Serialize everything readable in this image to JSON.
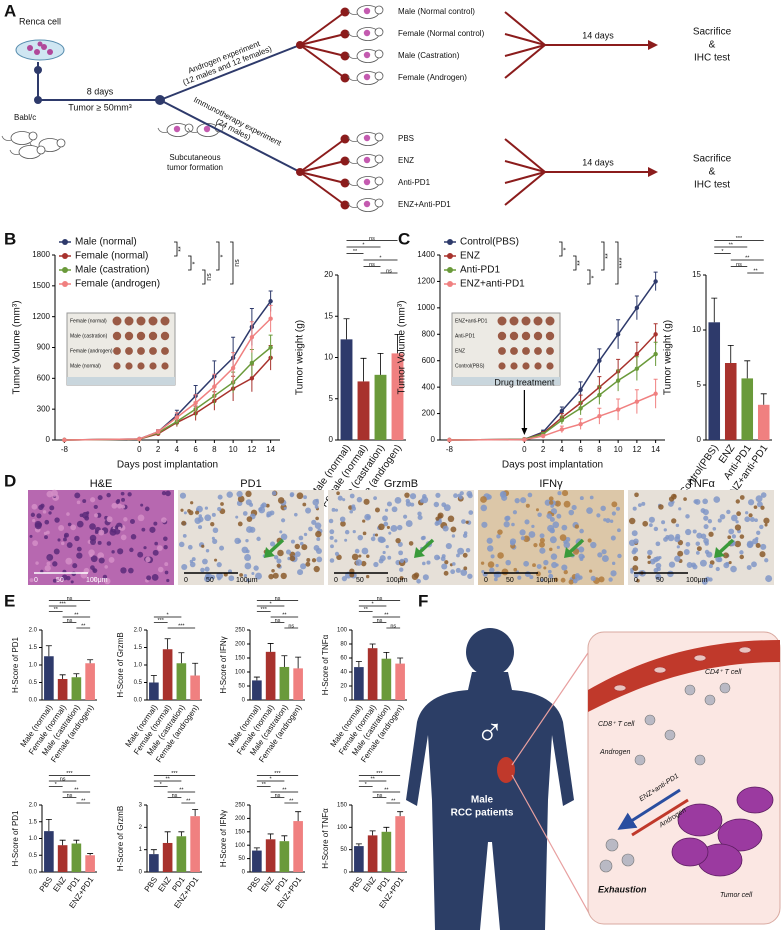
{
  "panel_labels": [
    "A",
    "B",
    "C",
    "D",
    "E",
    "F"
  ],
  "schematic": {
    "renca": "Renca cell",
    "mouse": "Babl/c",
    "days": "8 days",
    "tumor": "Tumor ≥ 50mm³",
    "formation": [
      "Subcutaneous",
      "tumor formation"
    ],
    "branches": [
      {
        "title": [
          "Androgen experiment",
          "(12 males and 12 females)"
        ],
        "groups": [
          "Male (Normal control)",
          "Female (Normal control)",
          "Male (Castration)",
          "Female (Androgen)"
        ],
        "days": "14 days",
        "end": [
          "Sacrifice",
          "&",
          "IHC test"
        ]
      },
      {
        "title": [
          "Immunotherapy experiment",
          "(24 males)"
        ],
        "groups": [
          "PBS",
          "ENZ",
          "Anti-PD1",
          "ENZ+Anti-PD1"
        ],
        "days": "14 days",
        "end": [
          "Sacrifice",
          "&",
          "IHC test"
        ]
      }
    ]
  },
  "chart_data": [
    {
      "type": "line",
      "ylabel": "Tumor Volume (mm³)",
      "xlabel": "Days post implantation",
      "x": [
        -8,
        0,
        2,
        4,
        6,
        8,
        10,
        12,
        14
      ],
      "xlim": [
        -9,
        15
      ],
      "xticks": [
        -8,
        0,
        2,
        4,
        6,
        8,
        10,
        12,
        14
      ],
      "ylim": [
        0,
        1800
      ],
      "yticks": [
        0,
        300,
        600,
        900,
        1200,
        1500,
        1800
      ],
      "series": [
        {
          "name": "Male (normal)",
          "color": "#2e3a6b",
          "values": [
            0,
            10,
            80,
            240,
            430,
            620,
            800,
            1100,
            1350
          ],
          "errors": [
            0,
            5,
            20,
            50,
            100,
            150,
            200,
            180,
            100
          ]
        },
        {
          "name": "Female (normal)",
          "color": "#a8322d",
          "values": [
            0,
            8,
            60,
            170,
            260,
            380,
            500,
            600,
            800
          ],
          "errors": [
            0,
            4,
            15,
            40,
            70,
            90,
            120,
            130,
            120
          ]
        },
        {
          "name": "Male (castration)",
          "color": "#6a9a3a",
          "values": [
            0,
            8,
            70,
            180,
            300,
            430,
            560,
            750,
            900
          ],
          "errors": [
            0,
            4,
            15,
            40,
            70,
            90,
            100,
            130,
            120
          ]
        },
        {
          "name": "Female (androgen)",
          "color": "#f08080",
          "values": [
            0,
            10,
            80,
            220,
            360,
            520,
            700,
            1000,
            1180
          ],
          "errors": [
            0,
            5,
            20,
            45,
            80,
            120,
            150,
            150,
            130
          ]
        }
      ],
      "comparisons": [
        {
          "a": 0,
          "b": 1,
          "label": "**"
        },
        {
          "a": 1,
          "b": 2,
          "label": "*"
        },
        {
          "a": 2,
          "b": 3,
          "label": "ns"
        },
        {
          "a": 0,
          "b": 2,
          "label": "*"
        },
        {
          "a": 0,
          "b": 3,
          "label": "ns"
        }
      ],
      "inset_labels": [
        "Female (normal)",
        "Male (castration)",
        "Female (androgen)",
        "Male (normal)"
      ]
    },
    {
      "type": "bar",
      "ylabel": "Tumor weight (g)",
      "categories": [
        "Male (normal)",
        "Female (normal)",
        "Male (castration)",
        "Female (androgen)"
      ],
      "colors": [
        "#2e3a6b",
        "#a8322d",
        "#6a9a3a",
        "#f08080"
      ],
      "values": [
        12.2,
        7.1,
        7.9,
        10.5
      ],
      "errors": [
        2.5,
        2.8,
        2.6,
        2.3
      ],
      "ylim": [
        0,
        20
      ],
      "yticks": [
        0,
        5,
        10,
        15,
        20
      ],
      "comparisons": [
        {
          "a": 2,
          "b": 3,
          "label": "ns"
        },
        {
          "a": 1,
          "b": 2,
          "label": "ns"
        },
        {
          "a": 1,
          "b": 3,
          "label": "*"
        },
        {
          "a": 0,
          "b": 1,
          "label": "**"
        },
        {
          "a": 0,
          "b": 2,
          "label": "*"
        },
        {
          "a": 0,
          "b": 3,
          "label": "ns"
        }
      ]
    },
    {
      "type": "line",
      "ylabel": "Tumor Volume (mm³)",
      "xlabel": "Days post implantation",
      "x": [
        -8,
        0,
        2,
        4,
        6,
        8,
        10,
        12,
        14
      ],
      "xlim": [
        -9,
        15
      ],
      "xticks": [
        -8,
        0,
        2,
        4,
        6,
        8,
        10,
        12,
        14
      ],
      "ylim": [
        0,
        1400
      ],
      "yticks": [
        0,
        200,
        400,
        600,
        800,
        1000,
        1200,
        1400
      ],
      "annotation": {
        "text": "Drug treatment",
        "x": 0
      },
      "series": [
        {
          "name": "Control(PBS)",
          "color": "#2e3a6b",
          "values": [
            0,
            5,
            60,
            220,
            380,
            600,
            800,
            1000,
            1200
          ],
          "errors": [
            0,
            3,
            15,
            30,
            60,
            90,
            110,
            90,
            70
          ]
        },
        {
          "name": "ENZ",
          "color": "#a8322d",
          "values": [
            0,
            5,
            50,
            170,
            280,
            400,
            520,
            650,
            800
          ],
          "errors": [
            0,
            3,
            12,
            30,
            60,
            80,
            90,
            90,
            80
          ]
        },
        {
          "name": "Anti-PD1",
          "color": "#6a9a3a",
          "values": [
            0,
            5,
            45,
            150,
            240,
            340,
            450,
            540,
            650
          ],
          "errors": [
            0,
            3,
            12,
            30,
            50,
            70,
            80,
            90,
            90
          ]
        },
        {
          "name": "ENZ+anti-PD1",
          "color": "#f08080",
          "values": [
            0,
            3,
            30,
            80,
            120,
            180,
            230,
            290,
            350
          ],
          "errors": [
            0,
            2,
            10,
            25,
            40,
            60,
            80,
            90,
            110
          ]
        }
      ],
      "comparisons": [
        {
          "a": 0,
          "b": 1,
          "label": "*"
        },
        {
          "a": 1,
          "b": 2,
          "label": "**"
        },
        {
          "a": 2,
          "b": 3,
          "label": "*"
        },
        {
          "a": 0,
          "b": 2,
          "label": "**"
        },
        {
          "a": 0,
          "b": 3,
          "label": "****"
        }
      ],
      "inset_labels": [
        "ENZ+anti-PD1",
        "Anti-PD1",
        "ENZ",
        "Control(PBS)"
      ]
    },
    {
      "type": "bar",
      "ylabel": "Tumor weight (g)",
      "categories": [
        "Control(PBS)",
        "ENZ",
        "Anti-PD1",
        "ENZ+anti-PD1"
      ],
      "colors": [
        "#2e3a6b",
        "#a8322d",
        "#6a9a3a",
        "#f08080"
      ],
      "values": [
        10.7,
        7.0,
        5.6,
        3.2
      ],
      "errors": [
        2.2,
        1.6,
        1.6,
        1.0
      ],
      "ylim": [
        0,
        15
      ],
      "yticks": [
        0,
        5,
        10,
        15
      ],
      "comparisons": [
        {
          "a": 2,
          "b": 3,
          "label": "**"
        },
        {
          "a": 1,
          "b": 2,
          "label": "ns"
        },
        {
          "a": 1,
          "b": 3,
          "label": "**"
        },
        {
          "a": 0,
          "b": 1,
          "label": "*"
        },
        {
          "a": 0,
          "b": 2,
          "label": "**"
        },
        {
          "a": 0,
          "b": 3,
          "label": "***"
        }
      ]
    },
    {
      "type": "bar",
      "ylabel": "H-Score of PD1",
      "categories": [
        "Male (normal)",
        "Female (normal)",
        "Male (castration)",
        "Female (androgen)"
      ],
      "colors": [
        "#2e3a6b",
        "#a8322d",
        "#6a9a3a",
        "#f08080"
      ],
      "values": [
        1.25,
        0.6,
        0.65,
        1.05
      ],
      "errors": [
        0.3,
        0.12,
        0.1,
        0.1
      ],
      "ylim": [
        0,
        2
      ],
      "yticks": [
        {
          "value": 0,
          "label": "0.0"
        },
        {
          "value": 0.5,
          "label": "0.5"
        },
        {
          "value": 1,
          "label": "1.0"
        },
        {
          "value": 1.5,
          "label": "1.5"
        },
        {
          "value": 2,
          "label": "2.0"
        }
      ],
      "comparisons": [
        {
          "a": 2,
          "b": 3,
          "label": "**"
        },
        {
          "a": 1,
          "b": 2,
          "label": "ns"
        },
        {
          "a": 1,
          "b": 3,
          "label": "**"
        },
        {
          "a": 0,
          "b": 1,
          "label": "**"
        },
        {
          "a": 0,
          "b": 2,
          "label": "***"
        },
        {
          "a": 0,
          "b": 3,
          "label": "ns"
        }
      ]
    },
    {
      "type": "bar",
      "ylabel": "H-Score of GrzmB",
      "categories": [
        "Male (normal)",
        "Female (normal)",
        "Male (castration)",
        "Female (androgen)"
      ],
      "colors": [
        "#2e3a6b",
        "#a8322d",
        "#6a9a3a",
        "#f08080"
      ],
      "values": [
        0.5,
        1.45,
        1.05,
        0.7
      ],
      "errors": [
        0.2,
        0.3,
        0.3,
        0.35
      ],
      "ylim": [
        0,
        2
      ],
      "yticks": [
        {
          "value": 0,
          "label": "0.0"
        },
        {
          "value": 0.5,
          "label": "0.5"
        },
        {
          "value": 1,
          "label": "1.0"
        },
        {
          "value": 1.5,
          "label": "1.5"
        },
        {
          "value": 2,
          "label": "2.0"
        }
      ],
      "comparisons": [
        {
          "a": 1,
          "b": 3,
          "label": "***"
        },
        {
          "a": 0,
          "b": 1,
          "label": "***"
        },
        {
          "a": 0,
          "b": 2,
          "label": "*"
        }
      ]
    },
    {
      "type": "bar",
      "ylabel": "H-Score of IFNγ",
      "categories": [
        "Male (normal)",
        "Female (normal)",
        "Male (castration)",
        "Female (androgen)"
      ],
      "colors": [
        "#2e3a6b",
        "#a8322d",
        "#6a9a3a",
        "#f08080"
      ],
      "values": [
        70,
        172,
        118,
        113
      ],
      "errors": [
        12,
        30,
        40,
        40
      ],
      "ylim": [
        0,
        250
      ],
      "yticks": [
        0,
        50,
        100,
        150,
        200,
        250
      ],
      "comparisons": [
        {
          "a": 2,
          "b": 3,
          "label": "ns"
        },
        {
          "a": 1,
          "b": 2,
          "label": "ns"
        },
        {
          "a": 1,
          "b": 3,
          "label": "**"
        },
        {
          "a": 0,
          "b": 1,
          "label": "***"
        },
        {
          "a": 0,
          "b": 2,
          "label": "*"
        },
        {
          "a": 0,
          "b": 3,
          "label": "ns"
        }
      ]
    },
    {
      "type": "bar",
      "ylabel": "H-Score of TNFα",
      "categories": [
        "Male (normal)",
        "Female (normal)",
        "Male (castration)",
        "Female (androgen)"
      ],
      "colors": [
        "#2e3a6b",
        "#a8322d",
        "#6a9a3a",
        "#f08080"
      ],
      "values": [
        47,
        74,
        59,
        52
      ],
      "errors": [
        8,
        6,
        9,
        8
      ],
      "ylim": [
        0,
        100
      ],
      "yticks": [
        0,
        20,
        40,
        60,
        80,
        100
      ],
      "comparisons": [
        {
          "a": 2,
          "b": 3,
          "label": "ns"
        },
        {
          "a": 1,
          "b": 2,
          "label": "ns"
        },
        {
          "a": 1,
          "b": 3,
          "label": "**"
        },
        {
          "a": 0,
          "b": 1,
          "label": "**"
        },
        {
          "a": 0,
          "b": 2,
          "label": "*"
        },
        {
          "a": 0,
          "b": 3,
          "label": "ns"
        }
      ]
    },
    {
      "type": "bar",
      "ylabel": "H-Score of PD1",
      "categories": [
        "PBS",
        "ENZ",
        "PD1",
        "ENZ+PD1"
      ],
      "colors": [
        "#2e3a6b",
        "#a8322d",
        "#6a9a3a",
        "#f08080"
      ],
      "values": [
        1.22,
        0.8,
        0.85,
        0.5
      ],
      "errors": [
        0.35,
        0.15,
        0.1,
        0.05
      ],
      "ylim": [
        0,
        2
      ],
      "yticks": [
        {
          "value": 0,
          "label": "0.0"
        },
        {
          "value": 0.5,
          "label": "0.5"
        },
        {
          "value": 1,
          "label": "1.0"
        },
        {
          "value": 1.5,
          "label": "1.5"
        },
        {
          "value": 2,
          "label": "2.0"
        }
      ],
      "comparisons": [
        {
          "a": 2,
          "b": 3,
          "label": "**"
        },
        {
          "a": 1,
          "b": 2,
          "label": "ns"
        },
        {
          "a": 1,
          "b": 3,
          "label": "**"
        },
        {
          "a": 0,
          "b": 1,
          "label": "*"
        },
        {
          "a": 0,
          "b": 2,
          "label": "ns"
        },
        {
          "a": 0,
          "b": 3,
          "label": "***"
        }
      ]
    },
    {
      "type": "bar",
      "ylabel": "H-Score of GrzmB",
      "categories": [
        "PBS",
        "ENZ",
        "PD1",
        "ENZ+PD1"
      ],
      "colors": [
        "#2e3a6b",
        "#a8322d",
        "#6a9a3a",
        "#f08080"
      ],
      "values": [
        0.8,
        1.3,
        1.6,
        2.5
      ],
      "errors": [
        0.2,
        0.5,
        0.2,
        0.3
      ],
      "ylim": [
        0,
        3
      ],
      "yticks": [
        0,
        1,
        2,
        3
      ],
      "comparisons": [
        {
          "a": 2,
          "b": 3,
          "label": "**"
        },
        {
          "a": 1,
          "b": 2,
          "label": "ns"
        },
        {
          "a": 1,
          "b": 3,
          "label": "**"
        },
        {
          "a": 0,
          "b": 1,
          "label": "*"
        },
        {
          "a": 0,
          "b": 2,
          "label": "**"
        },
        {
          "a": 0,
          "b": 3,
          "label": "***"
        }
      ]
    },
    {
      "type": "bar",
      "ylabel": "H-Score of IFNγ",
      "categories": [
        "PBS",
        "ENZ",
        "PD1",
        "ENZ+PD1"
      ],
      "colors": [
        "#2e3a6b",
        "#a8322d",
        "#6a9a3a",
        "#f08080"
      ],
      "values": [
        80,
        122,
        115,
        190
      ],
      "errors": [
        10,
        20,
        20,
        35
      ],
      "ylim": [
        0,
        250
      ],
      "yticks": [
        0,
        50,
        100,
        150,
        200,
        250
      ],
      "comparisons": [
        {
          "a": 2,
          "b": 3,
          "label": "**"
        },
        {
          "a": 1,
          "b": 2,
          "label": "ns"
        },
        {
          "a": 1,
          "b": 3,
          "label": "**"
        },
        {
          "a": 0,
          "b": 1,
          "label": "**"
        },
        {
          "a": 0,
          "b": 2,
          "label": "*"
        },
        {
          "a": 0,
          "b": 3,
          "label": "***"
        }
      ]
    },
    {
      "type": "bar",
      "ylabel": "H-Score of TNFα",
      "categories": [
        "PBS",
        "ENZ",
        "PD1",
        "ENZ+PD1"
      ],
      "colors": [
        "#2e3a6b",
        "#a8322d",
        "#6a9a3a",
        "#f08080"
      ],
      "values": [
        58,
        82,
        90,
        125
      ],
      "errors": [
        5,
        10,
        10,
        10
      ],
      "ylim": [
        0,
        150
      ],
      "yticks": [
        0,
        50,
        100,
        150
      ],
      "comparisons": [
        {
          "a": 2,
          "b": 3,
          "label": "**"
        },
        {
          "a": 1,
          "b": 2,
          "label": "ns"
        },
        {
          "a": 1,
          "b": 3,
          "label": "**"
        },
        {
          "a": 0,
          "b": 1,
          "label": "*"
        },
        {
          "a": 0,
          "b": 2,
          "label": "**"
        },
        {
          "a": 0,
          "b": 3,
          "label": "***"
        }
      ]
    }
  ],
  "ihc": {
    "titles": [
      "H&E",
      "PD1",
      "GrzmB",
      "IFNγ",
      "TNFα"
    ],
    "scale_bar": [
      "0",
      "50",
      "100μm"
    ]
  },
  "illustration": {
    "symbol": "♂",
    "caption": [
      "Male",
      "RCC patients"
    ],
    "cd4": "CD4⁺ T cell",
    "cd8": "CD8⁺ T cell",
    "androgen": "Androgen",
    "treatment": "ENZ+anti-PD1",
    "androgen_arrow": "Androgen",
    "exhaustion": "Exhaustion",
    "tumor": "Tumor cell"
  }
}
